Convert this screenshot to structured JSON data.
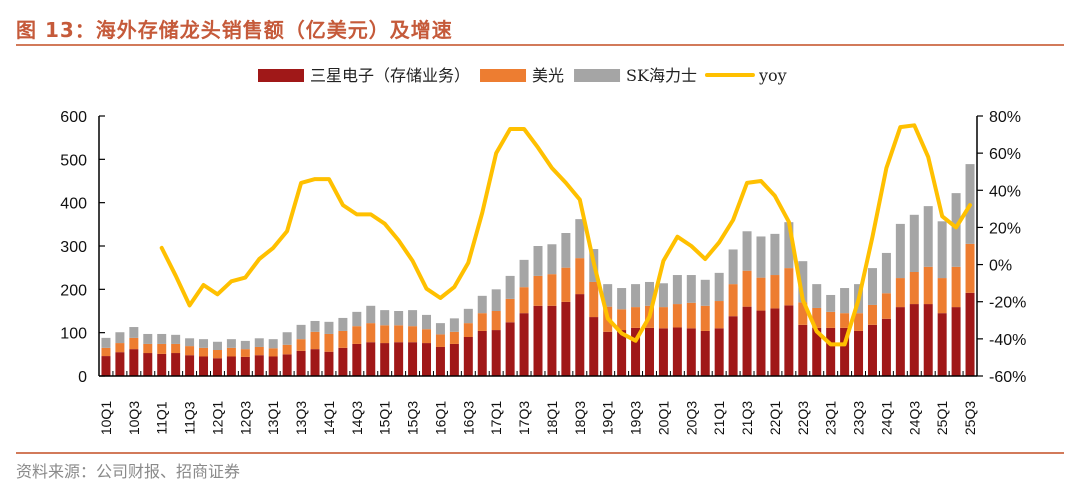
{
  "title": "图 13：海外存储龙头销售额（亿美元）及增速",
  "source": "资料来源：公司财报、招商证券",
  "chart_data": {
    "type": "bar",
    "subtype": "stacked bar with line on secondary axis",
    "title": "海外存储龙头销售额（亿美元）及增速",
    "xlabel": "",
    "ylabel": "",
    "ylim": [
      0,
      600
    ],
    "yticks": [
      0,
      100,
      200,
      300,
      400,
      500,
      600
    ],
    "y2lim": [
      -60,
      80
    ],
    "y2ticks": [
      "-60%",
      "-40%",
      "-20%",
      "0%",
      "20%",
      "40%",
      "60%",
      "80%"
    ],
    "y2_values": [
      -60,
      -40,
      -20,
      0,
      20,
      40,
      60,
      80
    ],
    "legend_position": "top-center",
    "grid": false,
    "categories": [
      "10Q1",
      "10Q2",
      "10Q3",
      "10Q4",
      "11Q1",
      "11Q2",
      "11Q3",
      "11Q4",
      "12Q1",
      "12Q2",
      "12Q3",
      "12Q4",
      "13Q1",
      "13Q2",
      "13Q3",
      "13Q4",
      "14Q1",
      "14Q2",
      "14Q3",
      "14Q4",
      "15Q1",
      "15Q2",
      "15Q3",
      "15Q4",
      "16Q1",
      "16Q2",
      "16Q3",
      "16Q4",
      "17Q1",
      "17Q2",
      "17Q3",
      "17Q4",
      "18Q1",
      "18Q2",
      "18Q3",
      "18Q4",
      "19Q1",
      "19Q2",
      "19Q3",
      "19Q4",
      "20Q1",
      "20Q2",
      "20Q3",
      "20Q4",
      "21Q1",
      "21Q2",
      "21Q3",
      "21Q4",
      "22Q1",
      "22Q2",
      "22Q3",
      "22Q4",
      "23Q1",
      "23Q2",
      "23Q3",
      "23Q4",
      "24Q1",
      "24Q2",
      "24Q3",
      "24Q4",
      "25Q1",
      "25Q2",
      "25Q3"
    ],
    "x_tick_labels": [
      "10Q1",
      "10Q3",
      "11Q1",
      "11Q3",
      "12Q1",
      "12Q3",
      "13Q1",
      "13Q3",
      "14Q1",
      "14Q3",
      "15Q1",
      "15Q3",
      "16Q1",
      "16Q3",
      "17Q1",
      "17Q3",
      "18Q1",
      "18Q3",
      "19Q1",
      "19Q3",
      "20Q1",
      "20Q3",
      "21Q1",
      "21Q3",
      "22Q1",
      "22Q3",
      "23Q1",
      "23Q3",
      "24Q1",
      "24Q3",
      "25Q1",
      "25Q3"
    ],
    "series": [
      {
        "name": "三星电子（存储业务）",
        "type": "bar",
        "color": "#a01818",
        "values": [
          46,
          55,
          62,
          53,
          51,
          53,
          48,
          45,
          41,
          45,
          44,
          48,
          45,
          50,
          58,
          62,
          56,
          65,
          74,
          78,
          76,
          78,
          78,
          76,
          67,
          74,
          90,
          104,
          106,
          124,
          145,
          162,
          162,
          171,
          189,
          136,
          102,
          106,
          111,
          111,
          110,
          112,
          110,
          104,
          110,
          138,
          160,
          151,
          156,
          163,
          118,
          111,
          111,
          111,
          104,
          118,
          132,
          159,
          166,
          166,
          145,
          159,
          192
        ]
      },
      {
        "name": "美光",
        "type": "bar",
        "color": "#ed7d31",
        "values": [
          19,
          21,
          26,
          21,
          23,
          21,
          21,
          20,
          19,
          20,
          18,
          19,
          19,
          22,
          27,
          40,
          41,
          39,
          41,
          44,
          41,
          39,
          37,
          32,
          29,
          28,
          32,
          41,
          44,
          54,
          60,
          69,
          73,
          79,
          83,
          81,
          58,
          48,
          48,
          51,
          49,
          54,
          59,
          58,
          63,
          74,
          83,
          76,
          77,
          86,
          52,
          46,
          37,
          34,
          41,
          46,
          59,
          67,
          74,
          86,
          81,
          93,
          113
        ]
      },
      {
        "name": "SK海力士",
        "type": "bar",
        "color": "#a5a5a5",
        "values": [
          23,
          25,
          25,
          23,
          23,
          21,
          18,
          20,
          19,
          20,
          19,
          20,
          21,
          29,
          33,
          25,
          28,
          30,
          33,
          40,
          35,
          33,
          37,
          33,
          26,
          31,
          33,
          40,
          50,
          53,
          63,
          69,
          69,
          80,
          90,
          76,
          52,
          49,
          53,
          55,
          55,
          67,
          64,
          60,
          65,
          80,
          91,
          95,
          95,
          106,
          95,
          55,
          39,
          58,
          67,
          85,
          93,
          125,
          132,
          140,
          131,
          170,
          184
        ]
      },
      {
        "name": "yoy",
        "type": "line",
        "axis": "secondary",
        "color": "#ffc000",
        "values": [
          null,
          null,
          null,
          null,
          9,
          -6,
          -22,
          -11,
          -16,
          -9,
          -7,
          3,
          9,
          18,
          44,
          46,
          46,
          32,
          27,
          27,
          22,
          13,
          2,
          -13,
          -18,
          -12,
          1,
          28,
          60,
          73,
          73,
          63,
          52,
          44,
          35,
          1,
          -29,
          -37,
          -41,
          -28,
          2,
          15,
          10,
          3,
          12,
          24,
          44,
          45,
          37,
          23,
          -19,
          -36,
          -43,
          -43,
          -19,
          15,
          52,
          74,
          75,
          58,
          26,
          20,
          32
        ],
        "unit": "%"
      }
    ]
  }
}
